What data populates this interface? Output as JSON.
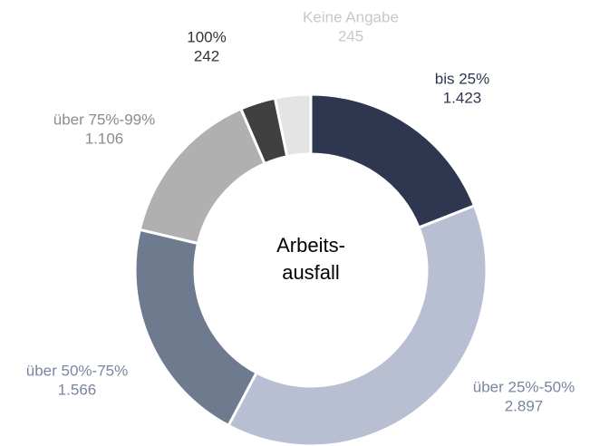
{
  "chart_data": {
    "type": "donut",
    "center_label": [
      "Arbeits-",
      "ausfall"
    ],
    "categories": [
      "bis 25%",
      "über 25%-50%",
      "über 50%-75%",
      "über 75%-99%",
      "100%",
      "Keine Angabe"
    ],
    "values": [
      1423,
      2897,
      1566,
      1106,
      242,
      245
    ],
    "value_labels": [
      "1.423",
      "2.897",
      "1.566",
      "1.106",
      "242",
      "245"
    ],
    "colors": [
      "#2e3650",
      "#b8bfd2",
      "#6e7a8e",
      "#b0b0b0",
      "#404040",
      "#e4e4e4"
    ],
    "label_colors": [
      "#2e3650",
      "#7a86a0",
      "#7a86a0",
      "#8c8c8c",
      "#333333",
      "#c8c8c8"
    ]
  }
}
